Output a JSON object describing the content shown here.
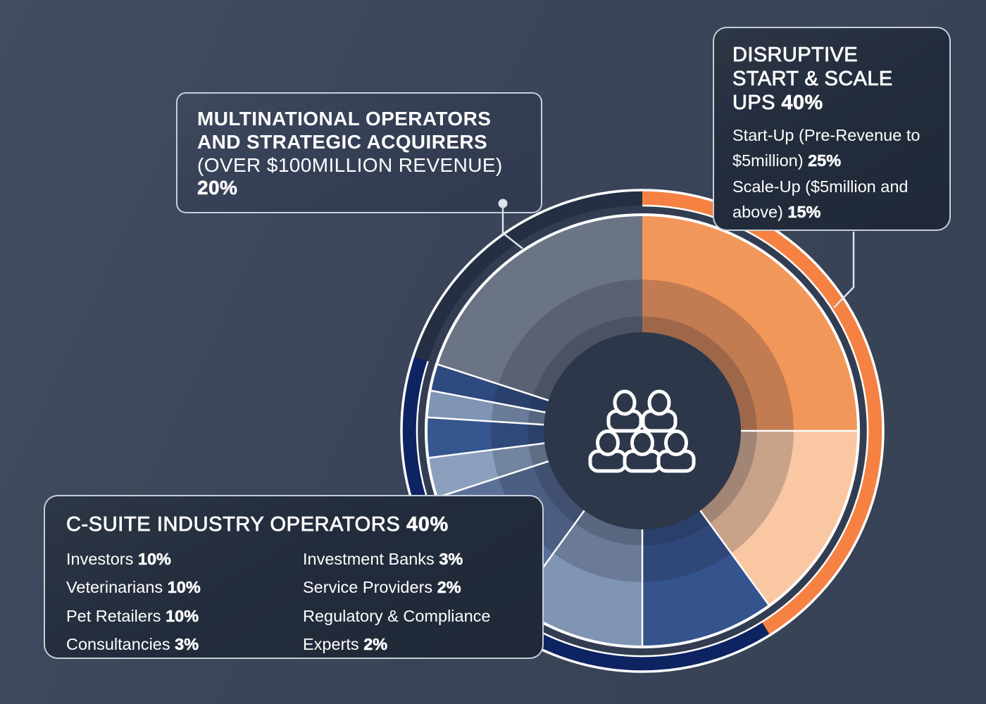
{
  "theme": {
    "background": "#3A4559",
    "box_dark_bg": "#232C3C",
    "box_mult_bg": "#353F55",
    "box_border": "#C9D2DD",
    "text": "#FFFFFF",
    "hole_color": "#2C3749",
    "divider_color": "#FFFFFF",
    "leader_color": "#DCE3EB"
  },
  "chart_data": {
    "type": "pie",
    "style": "donut",
    "units": "percent",
    "clockwise_from_top": true,
    "legend_position": "callout-boxes",
    "segments": [
      {
        "key": "start_up",
        "group": "DISRUPTIVE START & SCALE UPS",
        "label": "Start-Up (Pre-Revenue to $5million)",
        "value": 25,
        "color": "#F2975A"
      },
      {
        "key": "scale_up",
        "group": "DISRUPTIVE START & SCALE UPS",
        "label": "Scale-Up ($5million and above)",
        "value": 15,
        "color": "#FAC7A3"
      },
      {
        "key": "investors",
        "group": "C-SUITE INDUSTRY OPERATORS",
        "label": "Investors",
        "value": 10,
        "color": "#35548D"
      },
      {
        "key": "veterinarians",
        "group": "C-SUITE INDUSTRY OPERATORS",
        "label": "Veterinarians",
        "value": 10,
        "color": "#8094B4"
      },
      {
        "key": "pet_retailers",
        "group": "C-SUITE INDUSTRY OPERATORS",
        "label": "Pet Retailers",
        "value": 10,
        "color": "#5A7099"
      },
      {
        "key": "consultancies",
        "group": "C-SUITE INDUSTRY OPERATORS",
        "label": "Consultancies",
        "value": 3,
        "color": "#8CA0BE"
      },
      {
        "key": "investment_banks",
        "group": "C-SUITE INDUSTRY OPERATORS",
        "label": "Investment Banks",
        "value": 3,
        "color": "#35568E"
      },
      {
        "key": "service_providers",
        "group": "C-SUITE INDUSTRY OPERATORS",
        "label": "Service Providers",
        "value": 2,
        "color": "#8095B5"
      },
      {
        "key": "regulatory",
        "group": "C-SUITE INDUSTRY OPERATORS",
        "label": "Regulatory & Compliance Experts",
        "value": 2,
        "color": "#2E4A7E"
      },
      {
        "key": "multinational",
        "group": "MULTINATIONAL OPERATORS AND STRATEGIC ACQUIRERS",
        "label": "Multinational Operators and Strategic Acquirers (over $100million revenue)",
        "value": 20,
        "color": "#6B7484"
      }
    ],
    "inner_overlay": {
      "radii_fraction": [
        0.7,
        0.53
      ],
      "color": "rgba(26,32,48,0.22)"
    },
    "accent_ring": [
      {
        "key": "disruptive",
        "from_deg": 0,
        "to_deg": 148,
        "color": "#F58243"
      },
      {
        "key": "c_suite",
        "from_deg": 148,
        "to_deg": 288,
        "color": "#0E2362"
      },
      {
        "key": "multinational",
        "from_deg": 288,
        "to_deg": 360,
        "color": "#242F44"
      }
    ]
  },
  "callouts": {
    "disruptive": {
      "title": "DISRUPTIVE START & SCALE UPS",
      "title_pct": "40%",
      "items": [
        {
          "label": "Start-Up (Pre-Revenue to $5million)",
          "pct": "25%"
        },
        {
          "label": "Scale-Up ($5million and above)",
          "pct": "15%"
        }
      ]
    },
    "multinational": {
      "title_bold": "MULTINATIONAL OPERATORS AND STRATEGIC ACQUIRERS",
      "subtitle": "(OVER $100MILLION REVENUE)",
      "pct": "20%"
    },
    "csuite": {
      "title": "C-SUITE INDUSTRY OPERATORS",
      "title_pct": "40%",
      "items": [
        {
          "label": "Investors",
          "pct": "10%"
        },
        {
          "label": "Veterinarians",
          "pct": "10%"
        },
        {
          "label": "Pet Retailers",
          "pct": "10%"
        },
        {
          "label": "Consultancies",
          "pct": "3%"
        },
        {
          "label": "Investment Banks",
          "pct": "3%"
        },
        {
          "label": "Service Providers",
          "pct": "2%"
        },
        {
          "label": "Regulatory & Compliance Experts",
          "pct": "2%"
        }
      ]
    }
  },
  "center_icon": "people-group-icon"
}
